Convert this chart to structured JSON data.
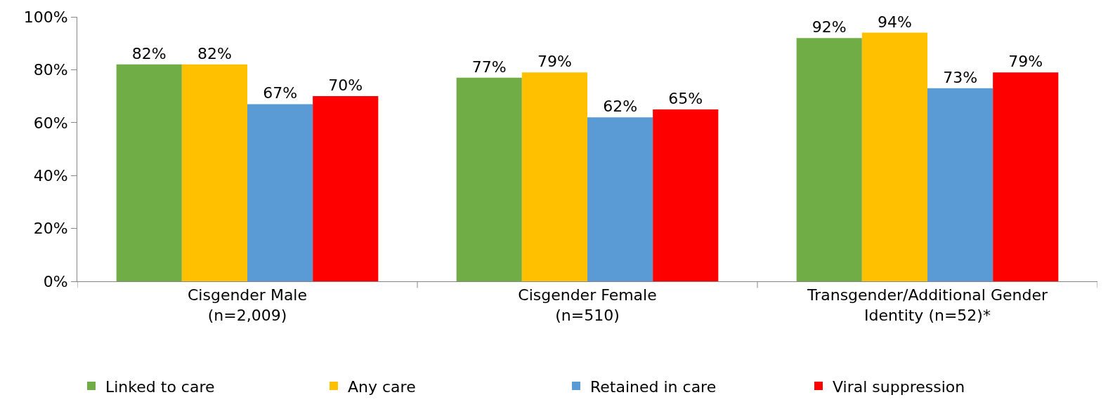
{
  "chart_data": {
    "type": "bar",
    "categories": [
      "Cisgender Male\n(n=2,009)",
      "Cisgender Female\n(n=510)",
      "Transgender/Additional Gender\nIdentity (n=52)*"
    ],
    "series": [
      {
        "name": "Linked to care",
        "color": "#70ad47",
        "values": [
          82,
          77,
          92
        ],
        "value_labels": [
          "82%",
          "77%",
          "92%"
        ]
      },
      {
        "name": "Any care",
        "color": "#ffc000",
        "values": [
          82,
          79,
          94
        ],
        "value_labels": [
          "82%",
          "79%",
          "94%"
        ]
      },
      {
        "name": "Retained in care",
        "color": "#5b9bd5",
        "values": [
          67,
          62,
          73
        ],
        "value_labels": [
          "67%",
          "62%",
          "73%"
        ]
      },
      {
        "name": "Viral suppression",
        "color": "#ff0000",
        "values": [
          70,
          65,
          79
        ],
        "value_labels": [
          "70%",
          "65%",
          "79%"
        ]
      }
    ],
    "ylim": [
      0,
      100
    ],
    "yticks": [
      {
        "value": 0,
        "label": "0%"
      },
      {
        "value": 20,
        "label": "20%"
      },
      {
        "value": 40,
        "label": "40%"
      },
      {
        "value": 60,
        "label": "60%"
      },
      {
        "value": 80,
        "label": "80%"
      },
      {
        "value": 100,
        "label": "100%"
      }
    ],
    "legend": "bottom"
  }
}
